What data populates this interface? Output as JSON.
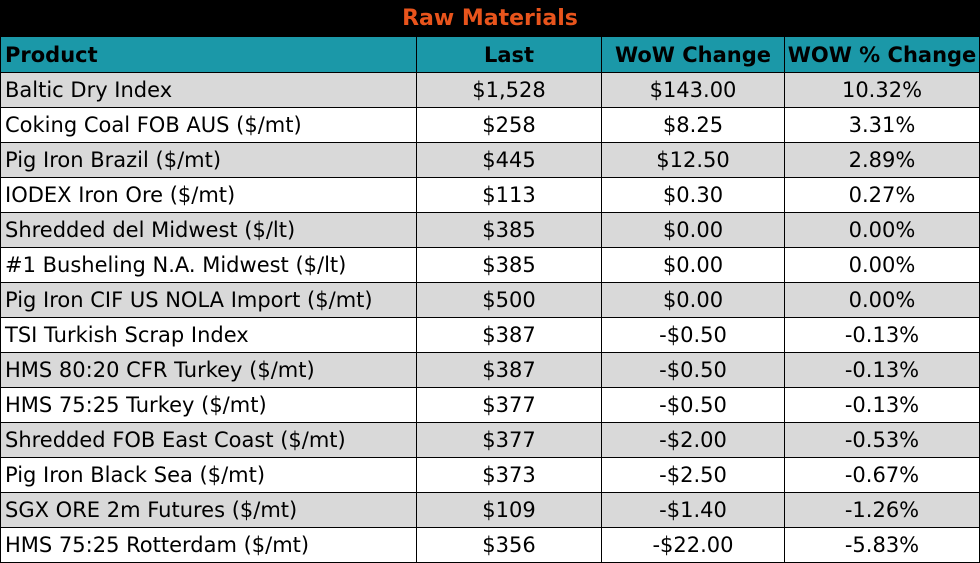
{
  "title": "Raw Materials",
  "headers": [
    "Product",
    "Last",
    "WoW Change",
    "WOW % Change"
  ],
  "rows": [
    [
      "Baltic Dry Index",
      "$1,528",
      "$143.00",
      "10.32%"
    ],
    [
      "Coking Coal FOB AUS ($/mt)",
      "$258",
      "$8.25",
      "3.31%"
    ],
    [
      "Pig Iron Brazil ($/mt)",
      "$445",
      "$12.50",
      "2.89%"
    ],
    [
      "IODEX  Iron Ore ($/mt)",
      "$113",
      "$0.30",
      "0.27%"
    ],
    [
      "Shredded del  Midwest ($/lt)",
      "$385",
      "$0.00",
      "0.00%"
    ],
    [
      "#1 Busheling N.A. Midwest ($/lt)",
      "$385",
      "$0.00",
      "0.00%"
    ],
    [
      "Pig Iron CIF US NOLA Import ($/mt)",
      "$500",
      "$0.00",
      "0.00%"
    ],
    [
      "TSI Turkish Scrap Index",
      "$387",
      "-$0.50",
      "-0.13%"
    ],
    [
      "HMS 80:20 CFR Turkey ($/mt)",
      "$387",
      "-$0.50",
      "-0.13%"
    ],
    [
      "HMS 75:25 Turkey ($/mt)",
      "$377",
      "-$0.50",
      "-0.13%"
    ],
    [
      "Shredded FOB East Coast ($/mt)",
      "$377",
      "-$2.00",
      "-0.53%"
    ],
    [
      "Pig Iron Black Sea ($/mt)",
      "$373",
      "-$2.50",
      "-0.67%"
    ],
    [
      "SGX ORE 2m Futures ($/mt)",
      "$109",
      "-$1.40",
      "-1.26%"
    ],
    [
      "HMS 75:25 Rotterdam ($/mt)",
      "$356",
      "-$22.00",
      "-5.83%"
    ]
  ],
  "colors": {
    "title_bg": "#000000",
    "title_text": "#e8541c",
    "header_bg": "#1b98a8",
    "shade_row": "#d9d9d9"
  }
}
